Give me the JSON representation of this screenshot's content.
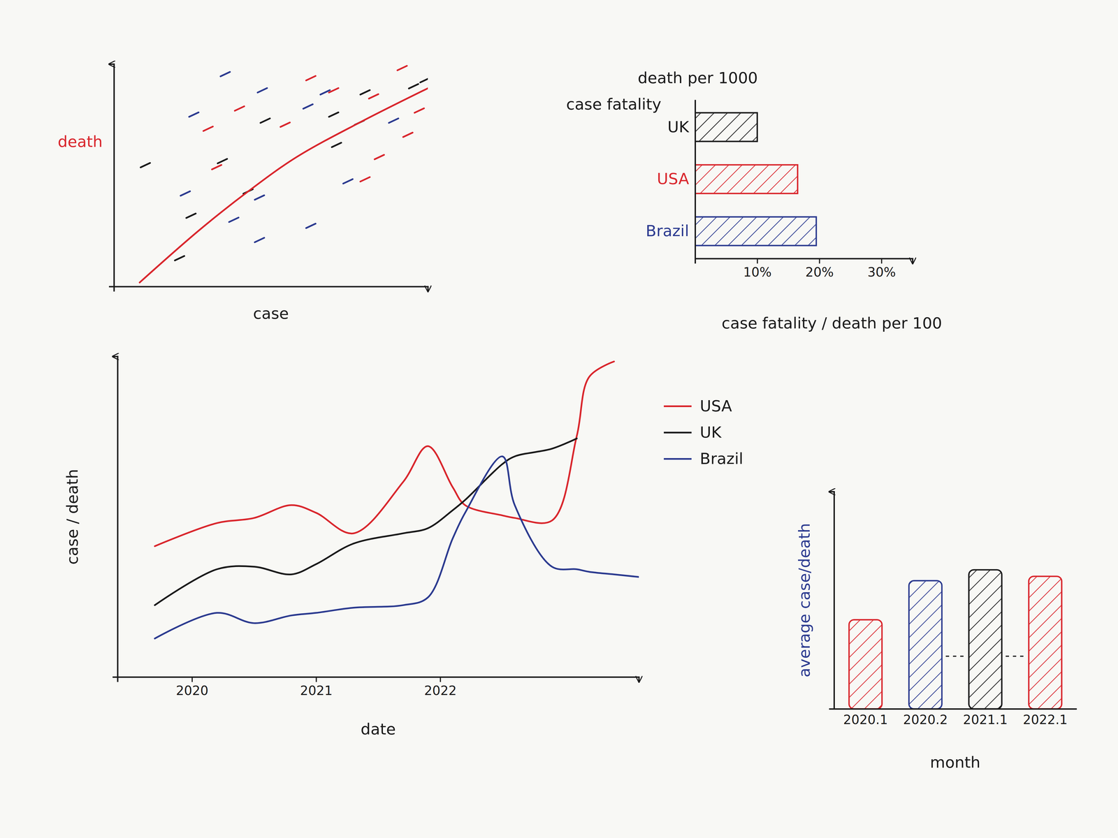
{
  "chart_data": [
    {
      "type": "scatter",
      "x_label": "case",
      "y_label": "death",
      "xlim": [
        0,
        110
      ],
      "ylim": [
        0,
        110
      ],
      "tick_labels": false,
      "series": [
        {
          "color": "#d9262c",
          "marker": "dash",
          "x": [
            33,
            44,
            60,
            69,
            77,
            93,
            88,
            103,
            107,
            36,
            91,
            101
          ],
          "values": [
            78,
            88,
            80,
            103,
            97,
            64,
            53,
            75,
            87,
            59,
            94,
            108
          ]
        },
        {
          "color": "#2b3a8f",
          "marker": "dash",
          "x": [
            28,
            52,
            39,
            25,
            51,
            42,
            69,
            51,
            74,
            98,
            82,
            68
          ],
          "values": [
            85,
            97,
            105,
            46,
            44,
            33,
            30,
            23,
            96,
            82,
            52,
            89
          ]
        },
        {
          "color": "#1a1a1a",
          "marker": "dash",
          "x": [
            23,
            27,
            38,
            88,
            86,
            78,
            53,
            77,
            105,
            11,
            47,
            109
          ],
          "values": [
            14,
            35,
            62,
            96,
            81,
            70,
            82,
            85,
            99,
            60,
            47,
            102
          ]
        },
        {
          "type": "line",
          "color": "#d9262c",
          "x": [
            9,
            30,
            47,
            64,
            86,
            110
          ],
          "values": [
            2,
            28,
            47,
            64,
            81,
            98
          ]
        }
      ]
    },
    {
      "type": "bar",
      "orientation": "horizontal",
      "x_label": "case fatality / death per 100",
      "y_label": "case fatality",
      "y_label_2": "death per 1000",
      "categories": [
        "UK",
        "USA",
        "Brazil"
      ],
      "values": [
        10,
        16.5,
        19.5
      ],
      "colors": [
        "#1a1a1a",
        "#d9262c",
        "#2b3a8f"
      ],
      "xlim": [
        0,
        35
      ],
      "xticks": [
        {
          "value": 10,
          "label": "10%"
        },
        {
          "value": 20,
          "label": "20%"
        },
        {
          "value": 30,
          "label": "30%"
        }
      ]
    },
    {
      "type": "line",
      "x_label": "date",
      "y_label": "case / death",
      "legend": "right",
      "tick_labels": "x",
      "xlim": [
        2019.4,
        2023.6
      ],
      "xticks": [
        2020,
        2021,
        2022
      ],
      "ylim": [
        0,
        125
      ],
      "x": [
        2019.7,
        2020.2,
        2020.5,
        2020.8,
        2021.0,
        2021.3,
        2021.7,
        2021.9,
        2022.1,
        2022.2,
        2022.5,
        2022.6,
        2022.9,
        2023.1,
        2023.2,
        2023.4,
        2023.6
      ],
      "series": [
        {
          "name": "USA",
          "color": "#d9262c",
          "values": [
            51,
            60,
            62,
            67,
            64,
            56,
            76,
            90,
            74,
            67,
            63,
            62,
            61,
            94,
            117,
            123,
            null
          ]
        },
        {
          "name": "UK",
          "color": "#1a1a1a",
          "values": [
            28,
            42,
            43,
            40,
            44,
            52,
            56,
            58,
            65,
            69,
            83,
            86,
            89,
            93,
            null,
            null,
            null
          ]
        },
        {
          "name": "Brazil",
          "color": "#2b3a8f",
          "values": [
            15,
            25,
            21,
            24,
            25,
            27,
            28,
            31,
            54,
            64,
            86,
            67,
            43,
            42,
            41,
            40,
            39
          ]
        }
      ]
    },
    {
      "type": "bar",
      "x_label": "month",
      "y_label": "average case/death",
      "tick_labels": "x",
      "categories": [
        "2020.1",
        "2020.2",
        "2021.1",
        "2022.1"
      ],
      "values": [
        41,
        59,
        64,
        61
      ],
      "colors": [
        "#d9262c",
        "#2b3a8f",
        "#1a1a1a",
        "#d9262c"
      ],
      "ylim": [
        0,
        100
      ]
    }
  ]
}
